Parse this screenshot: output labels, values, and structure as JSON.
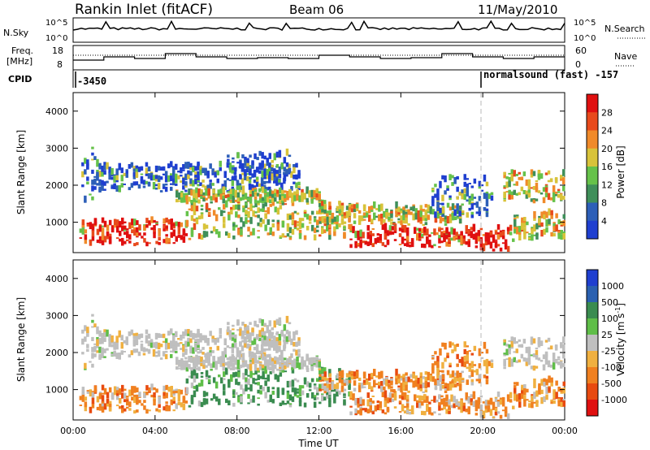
{
  "header": {
    "station": "Rankin Inlet (fitACF)",
    "beam": "Beam 06",
    "date": "11/May/2010"
  },
  "summary_panels": {
    "left_labels": [
      "N.Sky",
      "Freq.",
      "[MHz]",
      "CPID"
    ],
    "right_labels": [
      "N.Search",
      "Nave"
    ],
    "nsky_ticks": [
      "10^5",
      "10^0"
    ],
    "nsearch_ticks": [
      "10^5",
      "10^0"
    ],
    "freq_ticks": [
      "18",
      "8"
    ],
    "nave_ticks": [
      "60",
      "0"
    ],
    "cpid_left": "-3450",
    "cpid_right": "normalsound (fast) -157"
  },
  "colors": {
    "power_scale": [
      "#1f3fd0",
      "#2d5fb8",
      "#3f8f5a",
      "#66c24a",
      "#d8c33a",
      "#f08a2a",
      "#e84a1c",
      "#e01010"
    ],
    "velocity_scale": [
      "#1f3fd0",
      "#2a60b0",
      "#3a8c50",
      "#5fbe48",
      "#bfbfbf",
      "#f0b040",
      "#f08020",
      "#e84a10",
      "#e01010"
    ],
    "cursor_line": "#b8b8b8"
  },
  "chart_data": [
    {
      "type": "heatmap",
      "title": "Power",
      "ylabel": "Slant Range [km]",
      "xlabel": "Time UT",
      "x_ticks": [
        "00:00",
        "04:00",
        "08:00",
        "12:00",
        "16:00",
        "20:00",
        "00:00"
      ],
      "y_ticks": [
        "1000",
        "2000",
        "3000",
        "4000"
      ],
      "ylim": [
        180,
        4500
      ],
      "colorbar_label": "Power [dB]",
      "colorbar_ticks": [
        "4",
        "8",
        "12",
        "16",
        "20",
        "24",
        "28"
      ],
      "colorbar_range": [
        0,
        32
      ]
    },
    {
      "type": "heatmap",
      "title": "Velocity",
      "ylabel": "Slant Range [km]",
      "xlabel": "Time UT",
      "x_ticks": [
        "00:00",
        "04:00",
        "08:00",
        "12:00",
        "16:00",
        "20:00",
        "00:00"
      ],
      "y_ticks": [
        "1000",
        "2000",
        "3000",
        "4000"
      ],
      "ylim": [
        180,
        4500
      ],
      "colorbar_label": "Velocity [m s",
      "colorbar_label_sup": "-1",
      "colorbar_ticks": [
        "1000",
        "500",
        "100",
        "25",
        "-25",
        "-100",
        "-500",
        "-1000"
      ]
    }
  ],
  "echo_bands": [
    {
      "t0": 0.3,
      "t1": 5.5,
      "r0": 350,
      "r1": 1000,
      "power": "high",
      "vel": "neg"
    },
    {
      "t0": 5.5,
      "t1": 13.5,
      "r0": 500,
      "r1": 1500,
      "power": "mid",
      "vel": "pos"
    },
    {
      "t0": 13.5,
      "t1": 19.5,
      "r0": 300,
      "r1": 800,
      "power": "high",
      "vel": "neg"
    },
    {
      "t0": 19.5,
      "t1": 21.5,
      "r0": 200,
      "r1": 800,
      "power": "high",
      "vel": "neg"
    },
    {
      "t0": 21.5,
      "t1": 24.0,
      "r0": 500,
      "r1": 1200,
      "power": "mid",
      "vel": "neg"
    },
    {
      "t0": 1.0,
      "t1": 11.0,
      "r0": 1800,
      "r1": 2500,
      "power": "low",
      "vel": "zero"
    },
    {
      "t0": 5.0,
      "t1": 12.0,
      "r0": 1500,
      "r1": 1800,
      "power": "mid",
      "vel": "zero"
    },
    {
      "t0": 21.0,
      "t1": 24.0,
      "r0": 1500,
      "r1": 2300,
      "power": "mid",
      "vel": "zero"
    },
    {
      "t0": 0.4,
      "t1": 1.2,
      "r0": 1500,
      "r1": 3000,
      "power": "low",
      "vel": "zero"
    },
    {
      "t0": 7.5,
      "t1": 10.5,
      "r0": 2100,
      "r1": 2800,
      "power": "low",
      "vel": "zero"
    },
    {
      "t0": 12.0,
      "t1": 19.0,
      "r0": 900,
      "r1": 1400,
      "power": "mid",
      "vel": "neg"
    },
    {
      "t0": 17.5,
      "t1": 20.5,
      "r0": 1100,
      "r1": 2200,
      "power": "low",
      "vel": "neg"
    }
  ]
}
